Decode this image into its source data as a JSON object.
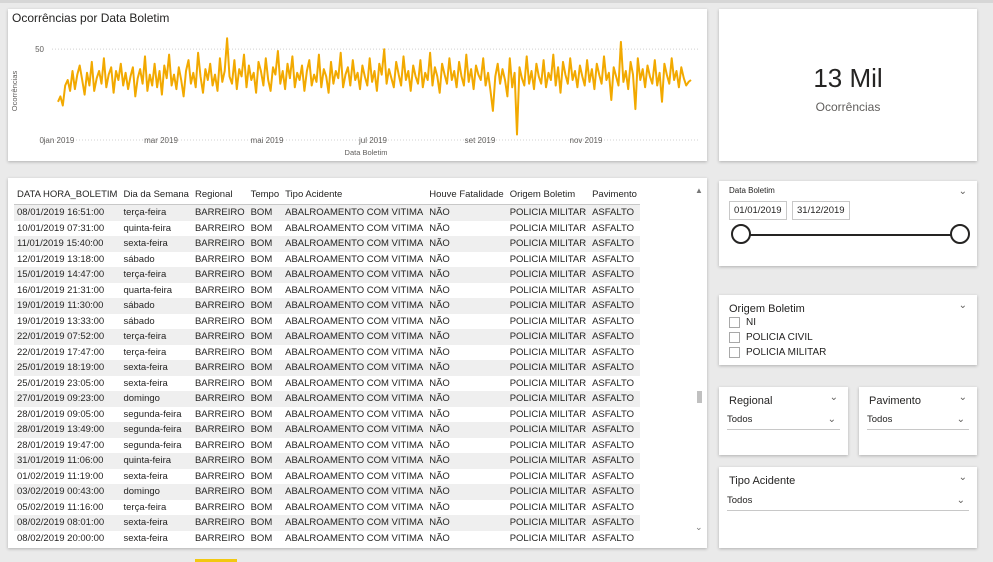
{
  "chart": {
    "title": "Ocorrências por Data Boletim",
    "xlabel": "Data Boletim",
    "ylabel": "Ocorrências",
    "y_ticks": [
      "0",
      "50"
    ],
    "x_ticks": [
      "jan 2019",
      "mar 2019",
      "mai 2019",
      "jul 2019",
      "set 2019",
      "nov 2019"
    ],
    "line_color": "#f2a900"
  },
  "chart_data": {
    "type": "line",
    "title": "Ocorrências por Data Boletim",
    "xlabel": "Data Boletim",
    "ylabel": "Ocorrências",
    "x_range": [
      "2019-01-01",
      "2019-12-31"
    ],
    "ylim": [
      0,
      60
    ],
    "series": [
      {
        "values": [
          21,
          24,
          19,
          30,
          33,
          27,
          38,
          28,
          36,
          41,
          33,
          25,
          37,
          30,
          43,
          27,
          34,
          38,
          31,
          45,
          29,
          36,
          40,
          26,
          38,
          33,
          42,
          30,
          37,
          28,
          35,
          40,
          24,
          34,
          39,
          31,
          46,
          27,
          36,
          30,
          42,
          29,
          38,
          25,
          41,
          34,
          47,
          30,
          36,
          28,
          40,
          33,
          24,
          38,
          44,
          31,
          37,
          29,
          48,
          35,
          26,
          39,
          33,
          42,
          30,
          36,
          27,
          45,
          32,
          38,
          56,
          35,
          31,
          44,
          28,
          39,
          35,
          47,
          29,
          41,
          33,
          37,
          26,
          43,
          38,
          30,
          45,
          33,
          27,
          40,
          36,
          49,
          31,
          38,
          28,
          42,
          34,
          46,
          29,
          37,
          33,
          41,
          27,
          38,
          44,
          30,
          36,
          32,
          47,
          29,
          39,
          35,
          26,
          43,
          31,
          38,
          34,
          48,
          29,
          36,
          40,
          30,
          44,
          33,
          37,
          28,
          41,
          35,
          30,
          45,
          32,
          38,
          27,
          42,
          36,
          50,
          31,
          39,
          34,
          29,
          43,
          36,
          30,
          46,
          33,
          38,
          27,
          41,
          35,
          31,
          44,
          29,
          37,
          33,
          48,
          30,
          40,
          35,
          26,
          42,
          36,
          31,
          45,
          33,
          38,
          29,
          43,
          35,
          30,
          47,
          32,
          39,
          28,
          41,
          36,
          33,
          45,
          30,
          37,
          27,
          16,
          35,
          42,
          31,
          39,
          33,
          24,
          45,
          29,
          37,
          3,
          40,
          34,
          30,
          46,
          31,
          38,
          28,
          42,
          35,
          31,
          44,
          29,
          37,
          33,
          47,
          30,
          40,
          26,
          43,
          36,
          31,
          45,
          33,
          38,
          29,
          41,
          35,
          30,
          44,
          32,
          39,
          28,
          42,
          36,
          31,
          46,
          33,
          37,
          22,
          40,
          35,
          30,
          54,
          32,
          38,
          28,
          43,
          36,
          17,
          45,
          33,
          39,
          29,
          41,
          35,
          31,
          44,
          30,
          37,
          21,
          42,
          36,
          31,
          45,
          33,
          38,
          29,
          40,
          34,
          30,
          32,
          33
        ]
      }
    ]
  },
  "kpi": {
    "value": "13 Mil",
    "label": "Ocorrências"
  },
  "table": {
    "columns": [
      "DATA HORA_BOLETIM",
      "Dia da Semana",
      "Regional",
      "Tempo",
      "Tipo Acidente",
      "Houve Fatalidade",
      "Origem Boletim",
      "Pavimento"
    ],
    "rows": [
      [
        "08/01/2019 16:51:00",
        "terça-feira",
        "BARREIRO",
        "BOM",
        "ABALROAMENTO COM VITIMA",
        "NÃO",
        "POLICIA MILITAR",
        "ASFALTO"
      ],
      [
        "10/01/2019 07:31:00",
        "quinta-feira",
        "BARREIRO",
        "BOM",
        "ABALROAMENTO COM VITIMA",
        "NÃO",
        "POLICIA MILITAR",
        "ASFALTO"
      ],
      [
        "11/01/2019 15:40:00",
        "sexta-feira",
        "BARREIRO",
        "BOM",
        "ABALROAMENTO COM VITIMA",
        "NÃO",
        "POLICIA MILITAR",
        "ASFALTO"
      ],
      [
        "12/01/2019 13:18:00",
        "sábado",
        "BARREIRO",
        "BOM",
        "ABALROAMENTO COM VITIMA",
        "NÃO",
        "POLICIA MILITAR",
        "ASFALTO"
      ],
      [
        "15/01/2019 14:47:00",
        "terça-feira",
        "BARREIRO",
        "BOM",
        "ABALROAMENTO COM VITIMA",
        "NÃO",
        "POLICIA MILITAR",
        "ASFALTO"
      ],
      [
        "16/01/2019 21:31:00",
        "quarta-feira",
        "BARREIRO",
        "BOM",
        "ABALROAMENTO COM VITIMA",
        "NÃO",
        "POLICIA MILITAR",
        "ASFALTO"
      ],
      [
        "19/01/2019 11:30:00",
        "sábado",
        "BARREIRO",
        "BOM",
        "ABALROAMENTO COM VITIMA",
        "NÃO",
        "POLICIA MILITAR",
        "ASFALTO"
      ],
      [
        "19/01/2019 13:33:00",
        "sábado",
        "BARREIRO",
        "BOM",
        "ABALROAMENTO COM VITIMA",
        "NÃO",
        "POLICIA MILITAR",
        "ASFALTO"
      ],
      [
        "22/01/2019 07:52:00",
        "terça-feira",
        "BARREIRO",
        "BOM",
        "ABALROAMENTO COM VITIMA",
        "NÃO",
        "POLICIA MILITAR",
        "ASFALTO"
      ],
      [
        "22/01/2019 17:47:00",
        "terça-feira",
        "BARREIRO",
        "BOM",
        "ABALROAMENTO COM VITIMA",
        "NÃO",
        "POLICIA MILITAR",
        "ASFALTO"
      ],
      [
        "25/01/2019 18:19:00",
        "sexta-feira",
        "BARREIRO",
        "BOM",
        "ABALROAMENTO COM VITIMA",
        "NÃO",
        "POLICIA MILITAR",
        "ASFALTO"
      ],
      [
        "25/01/2019 23:05:00",
        "sexta-feira",
        "BARREIRO",
        "BOM",
        "ABALROAMENTO COM VITIMA",
        "NÃO",
        "POLICIA MILITAR",
        "ASFALTO"
      ],
      [
        "27/01/2019 09:23:00",
        "domingo",
        "BARREIRO",
        "BOM",
        "ABALROAMENTO COM VITIMA",
        "NÃO",
        "POLICIA MILITAR",
        "ASFALTO"
      ],
      [
        "28/01/2019 09:05:00",
        "segunda-feira",
        "BARREIRO",
        "BOM",
        "ABALROAMENTO COM VITIMA",
        "NÃO",
        "POLICIA MILITAR",
        "ASFALTO"
      ],
      [
        "28/01/2019 13:49:00",
        "segunda-feira",
        "BARREIRO",
        "BOM",
        "ABALROAMENTO COM VITIMA",
        "NÃO",
        "POLICIA MILITAR",
        "ASFALTO"
      ],
      [
        "28/01/2019 19:47:00",
        "segunda-feira",
        "BARREIRO",
        "BOM",
        "ABALROAMENTO COM VITIMA",
        "NÃO",
        "POLICIA MILITAR",
        "ASFALTO"
      ],
      [
        "31/01/2019 11:06:00",
        "quinta-feira",
        "BARREIRO",
        "BOM",
        "ABALROAMENTO COM VITIMA",
        "NÃO",
        "POLICIA MILITAR",
        "ASFALTO"
      ],
      [
        "01/02/2019 11:19:00",
        "sexta-feira",
        "BARREIRO",
        "BOM",
        "ABALROAMENTO COM VITIMA",
        "NÃO",
        "POLICIA MILITAR",
        "ASFALTO"
      ],
      [
        "03/02/2019 00:43:00",
        "domingo",
        "BARREIRO",
        "BOM",
        "ABALROAMENTO COM VITIMA",
        "NÃO",
        "POLICIA MILITAR",
        "ASFALTO"
      ],
      [
        "05/02/2019 11:16:00",
        "terça-feira",
        "BARREIRO",
        "BOM",
        "ABALROAMENTO COM VITIMA",
        "NÃO",
        "POLICIA MILITAR",
        "ASFALTO"
      ],
      [
        "08/02/2019 08:01:00",
        "sexta-feira",
        "BARREIRO",
        "BOM",
        "ABALROAMENTO COM VITIMA",
        "NÃO",
        "POLICIA MILITAR",
        "ASFALTO"
      ],
      [
        "08/02/2019 20:00:00",
        "sexta-feira",
        "BARREIRO",
        "BOM",
        "ABALROAMENTO COM VITIMA",
        "NÃO",
        "POLICIA MILITAR",
        "ASFALTO"
      ]
    ]
  },
  "date_slicer": {
    "title": "Data Boletim",
    "start": "01/01/2019",
    "end": "31/12/2019"
  },
  "origem_slicer": {
    "title": "Origem Boletim",
    "options": [
      "NI",
      "POLICIA CIVIL",
      "POLICIA MILITAR"
    ]
  },
  "regional_slicer": {
    "title": "Regional",
    "value": "Todos"
  },
  "pavimento_slicer": {
    "title": "Pavimento",
    "value": "Todos"
  },
  "tipo_slicer": {
    "title": "Tipo Acidente",
    "value": "Todos"
  }
}
